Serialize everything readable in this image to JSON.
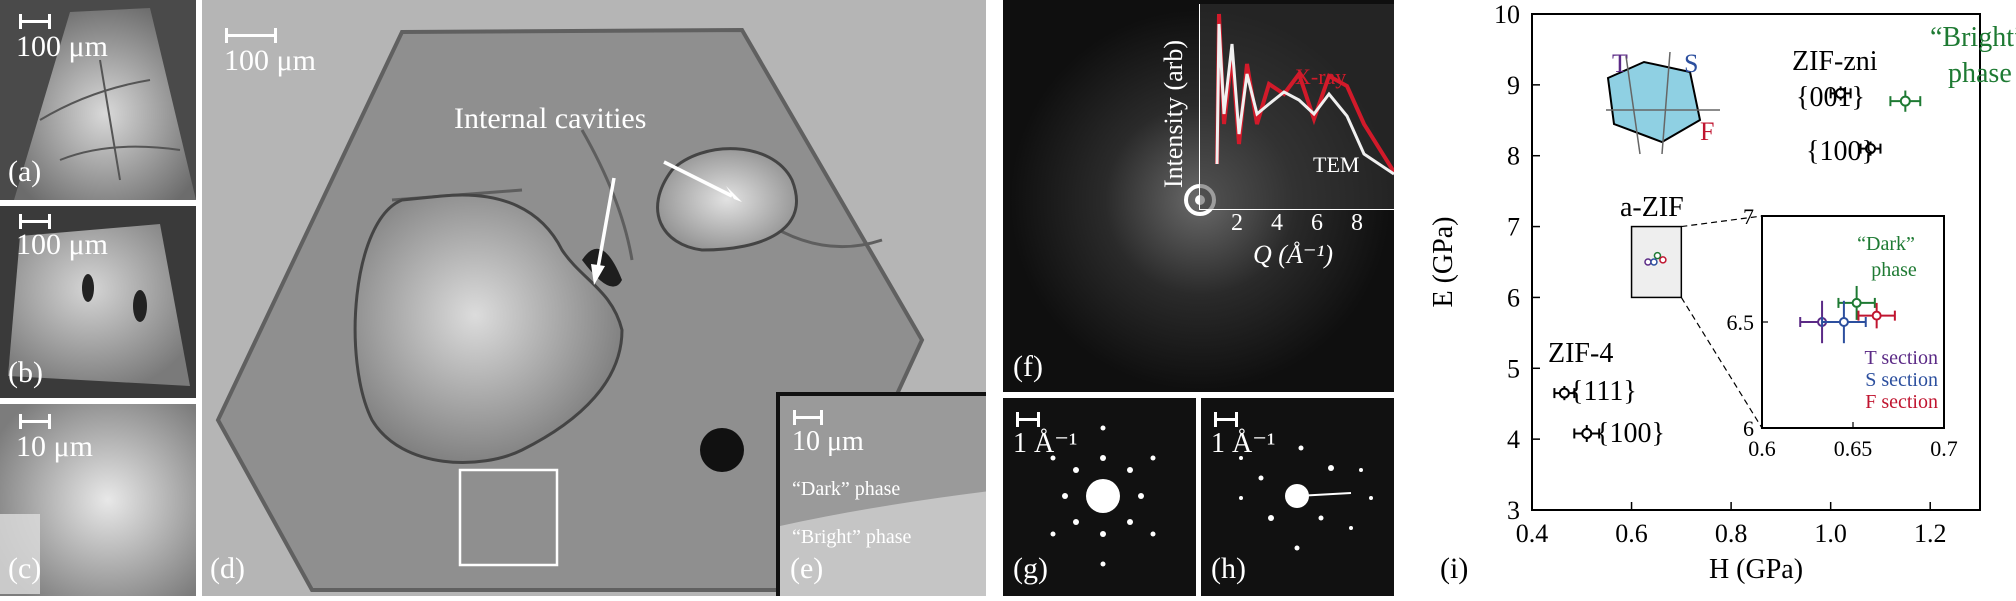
{
  "panels": {
    "a": {
      "label": "(a)",
      "scalebar": "100 μm"
    },
    "b": {
      "label": "(b)",
      "scalebar": "100 μm"
    },
    "c": {
      "label": "(c)",
      "scalebar": "10 μm"
    },
    "d": {
      "label": "(d)",
      "scalebar": "100 μm",
      "annotation": "Internal cavities"
    },
    "e": {
      "label": "(e)",
      "scalebar": "10 μm",
      "dark_phase": "“Dark” phase",
      "bright_phase": "“Bright” phase"
    },
    "f": {
      "label": "(f)",
      "inset_ylabel": "Intensity (arb)",
      "inset_xlabel": "Q (Å⁻¹)",
      "inset_ticks": [
        "2",
        "4",
        "6",
        "8"
      ],
      "xray_label": "X-ray",
      "tem_label": "TEM"
    },
    "g": {
      "label": "(g)",
      "scalebar": "1 Å⁻¹"
    },
    "h": {
      "label": "(h)",
      "scalebar": "1 Å⁻¹"
    },
    "i": {
      "label": "(i)"
    }
  },
  "chart_data": {
    "type": "scatter",
    "xlabel": "H (GPa)",
    "ylabel": "E (GPa)",
    "xlim": [
      0.4,
      1.3
    ],
    "ylim": [
      3,
      10
    ],
    "xticks": [
      "0.4",
      "0.6",
      "0.8",
      "1.0",
      "1.2"
    ],
    "yticks": [
      "3",
      "4",
      "5",
      "6",
      "7",
      "8",
      "9",
      "10"
    ],
    "annotations": {
      "zif_zni": "ZIF-zni",
      "bright_phase_1": "“Bright”",
      "bright_phase_2": "phase",
      "zni_001": "{001}",
      "zni_100": "{100}",
      "a_zif": "a-ZIF",
      "zif4": "ZIF-4",
      "zif4_111": "{111}",
      "zif4_100": "{100}",
      "crystal_T": "T",
      "crystal_S": "S",
      "crystal_F": "F"
    },
    "series": [
      {
        "name": "ZIF-zni {001}",
        "color": "#000000",
        "points": [
          {
            "x": 1.02,
            "y": 8.88,
            "xerr": 0.02,
            "yerr": 0.1
          }
        ]
      },
      {
        "name": "“Bright” phase",
        "color": "#1e7a33",
        "points": [
          {
            "x": 1.15,
            "y": 8.77,
            "xerr": 0.03,
            "yerr": 0.15
          }
        ]
      },
      {
        "name": "ZIF-zni {100}",
        "color": "#000000",
        "points": [
          {
            "x": 1.08,
            "y": 8.1,
            "xerr": 0.02,
            "yerr": 0.1
          }
        ]
      },
      {
        "name": "ZIF-4 {111}",
        "color": "#000000",
        "points": [
          {
            "x": 0.465,
            "y": 4.65,
            "xerr": 0.02,
            "yerr": 0.1
          }
        ]
      },
      {
        "name": "ZIF-4 {100}",
        "color": "#000000",
        "points": [
          {
            "x": 0.51,
            "y": 4.08,
            "xerr": 0.025,
            "yerr": 0.12
          }
        ]
      }
    ],
    "inset": {
      "xlim": [
        0.6,
        0.7
      ],
      "ylim": [
        6,
        7
      ],
      "xticks": [
        "0.6",
        "0.65",
        "0.7"
      ],
      "yticks": [
        "6",
        "6.5",
        "7"
      ],
      "dark_phase_1": "“Dark”",
      "dark_phase_2": "phase",
      "series": [
        {
          "name": "“Dark” phase",
          "color": "#1e7a33",
          "points": [
            {
              "x": 0.652,
              "y": 6.59,
              "xerr": 0.01,
              "yerr": 0.08
            }
          ]
        },
        {
          "name": "T section",
          "color": "#5b2a86",
          "points": [
            {
              "x": 0.633,
              "y": 6.5,
              "xerr": 0.012,
              "yerr": 0.1
            }
          ]
        },
        {
          "name": "S section",
          "color": "#2c4f9e",
          "points": [
            {
              "x": 0.645,
              "y": 6.5,
              "xerr": 0.012,
              "yerr": 0.1
            }
          ]
        },
        {
          "name": "F section",
          "color": "#c01530",
          "points": [
            {
              "x": 0.663,
              "y": 6.53,
              "xerr": 0.01,
              "yerr": 0.06
            }
          ]
        }
      ],
      "legend": [
        "T section",
        "S section",
        "F section"
      ]
    }
  }
}
